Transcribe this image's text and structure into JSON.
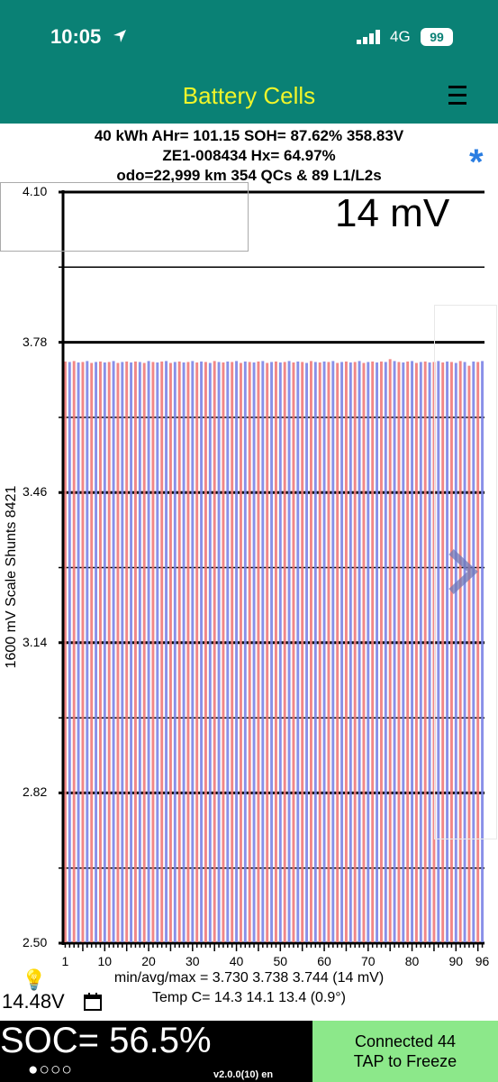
{
  "status_bar": {
    "time": "10:05",
    "network": "4G",
    "battery": "99"
  },
  "app": {
    "title": "Battery Cells"
  },
  "info": {
    "line1": "40 kWh  AHr= 101.15  SOH= 87.62%   358.83V",
    "line2": "ZE1-008434   Hx= 64.97%",
    "line3": "odo=22,999 km 354 QCs & 89 L1/L2s"
  },
  "chart_header": {
    "spread": "14 mV"
  },
  "y_axis_label": "1600 mV Scale   Shunts 8421",
  "chart_data": {
    "type": "bar",
    "ylim": [
      2.5,
      4.1
    ],
    "yticks": [
      "4.10",
      "3.78",
      "3.46",
      "3.14",
      "2.82",
      "2.50"
    ],
    "xticks": [
      "1",
      "10",
      "20",
      "30",
      "40",
      "50",
      "60",
      "70",
      "80",
      "90",
      "96"
    ],
    "cell_count": 96,
    "min": 3.73,
    "avg": 3.738,
    "max": 3.744,
    "colors": [
      "#f07a7a",
      "#7c84e6"
    ],
    "values": [
      3.739,
      3.738,
      3.74,
      3.737,
      3.738,
      3.74,
      3.736,
      3.738,
      3.739,
      3.737,
      3.738,
      3.74,
      3.736,
      3.738,
      3.739,
      3.737,
      3.739,
      3.738,
      3.736,
      3.74,
      3.738,
      3.737,
      3.739,
      3.74,
      3.736,
      3.738,
      3.739,
      3.737,
      3.738,
      3.74,
      3.737,
      3.739,
      3.738,
      3.736,
      3.74,
      3.738,
      3.737,
      3.739,
      3.738,
      3.74,
      3.736,
      3.739,
      3.738,
      3.737,
      3.739,
      3.74,
      3.736,
      3.738,
      3.739,
      3.737,
      3.738,
      3.74,
      3.737,
      3.739,
      3.738,
      3.736,
      3.74,
      3.738,
      3.737,
      3.739,
      3.738,
      3.74,
      3.736,
      3.738,
      3.739,
      3.737,
      3.738,
      3.74,
      3.736,
      3.738,
      3.739,
      3.737,
      3.739,
      3.738,
      3.744,
      3.74,
      3.738,
      3.737,
      3.739,
      3.74,
      3.736,
      3.738,
      3.739,
      3.737,
      3.738,
      3.74,
      3.737,
      3.739,
      3.738,
      3.736,
      3.74,
      3.738,
      3.73,
      3.739,
      3.738,
      3.74
    ]
  },
  "stats": {
    "minavgmax": "min/avg/max = 3.730 3.738 3.744  (14 mV)",
    "temp": "Temp C= 14.3  14.1  13.4  (0.9°)"
  },
  "voltage": "14.48V",
  "soc": {
    "text": "SOC= 56.5%",
    "dots": "●○○○",
    "version": "v2.0.0(10) en"
  },
  "connect": {
    "line1": "Connected 44",
    "line2": "TAP to Freeze"
  }
}
